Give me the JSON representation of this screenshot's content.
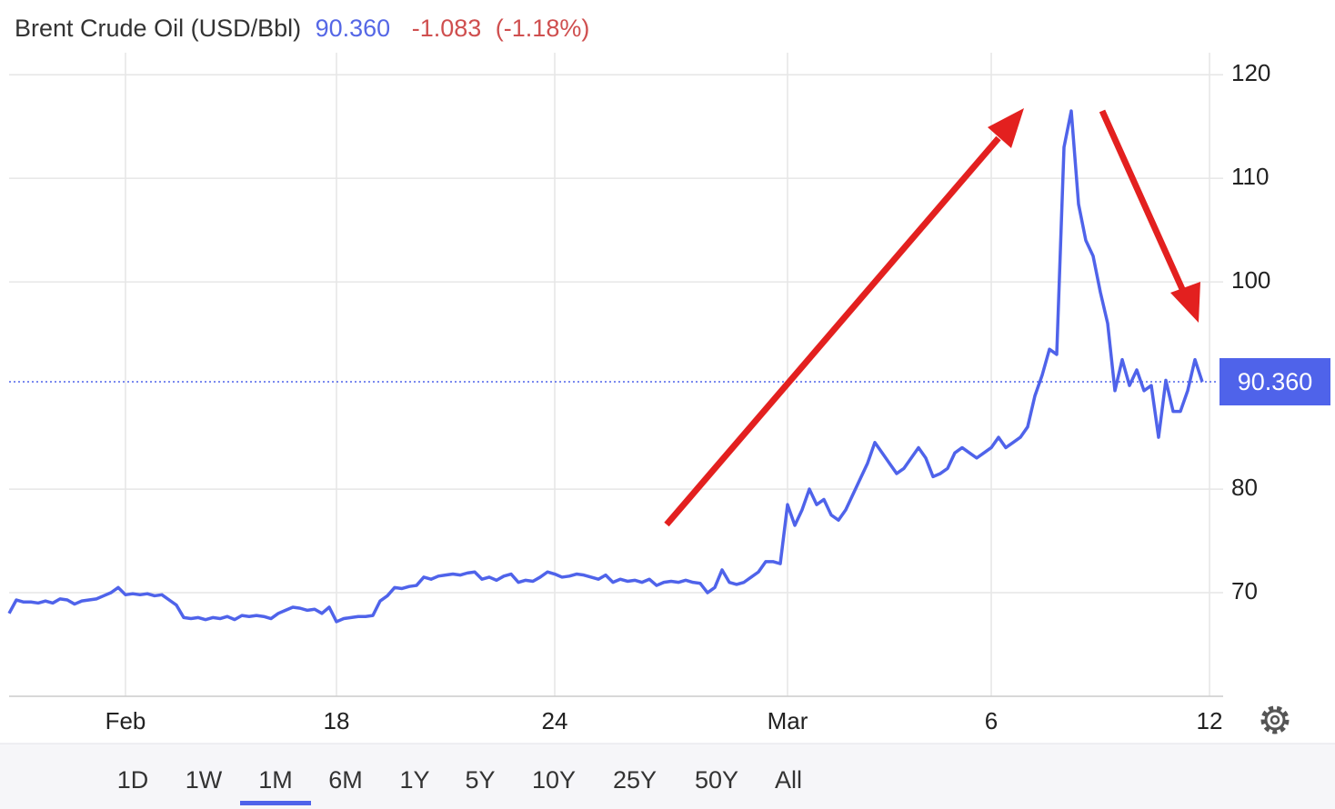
{
  "header": {
    "title": "Brent Crude Oil (USD/Bbl)",
    "price": "90.360",
    "change": "-1.083",
    "change_pct": "(-1.18%)"
  },
  "chart_data": {
    "type": "line",
    "categories": [
      null,
      null,
      null,
      null,
      null,
      null,
      null,
      null,
      null,
      null,
      null,
      null,
      null,
      null,
      null,
      null,
      "Feb",
      null,
      null,
      null,
      null,
      null,
      null,
      null,
      null,
      null,
      null,
      null,
      null,
      null,
      null,
      null,
      null,
      null,
      null,
      null,
      null,
      null,
      null,
      null,
      null,
      null,
      null,
      null,
      null,
      "18",
      null,
      null,
      null,
      null,
      null,
      null,
      null,
      null,
      null,
      null,
      null,
      null,
      null,
      null,
      null,
      null,
      null,
      null,
      null,
      null,
      null,
      null,
      null,
      null,
      null,
      null,
      null,
      null,
      null,
      "24",
      null,
      null,
      null,
      null,
      null,
      null,
      null,
      null,
      null,
      null,
      null,
      null,
      null,
      null,
      null,
      null,
      null,
      null,
      null,
      null,
      null,
      null,
      null,
      null,
      null,
      null,
      null,
      null,
      null,
      null,
      null,
      "Mar",
      null,
      null,
      null,
      null,
      null,
      null,
      null,
      null,
      null,
      null,
      null,
      null,
      null,
      null,
      null,
      null,
      null,
      null,
      null,
      null,
      null,
      null,
      null,
      null,
      null,
      null,
      null,
      "6",
      null,
      null,
      null,
      null,
      null,
      null,
      null,
      null,
      null,
      null,
      null,
      null,
      null,
      null,
      null,
      null,
      null,
      null,
      null,
      null,
      null,
      null,
      null,
      null,
      null,
      null,
      null,
      null,
      null,
      "12"
    ],
    "series": [
      {
        "name": "Brent Crude Oil",
        "color": "#4f63ea",
        "values": [
          68.0,
          69.3,
          69.1,
          69.1,
          69.0,
          69.2,
          69.0,
          69.4,
          69.3,
          68.9,
          69.2,
          69.3,
          69.4,
          69.7,
          70.0,
          70.5,
          69.8,
          69.9,
          69.8,
          69.9,
          69.7,
          69.8,
          69.3,
          68.8,
          67.6,
          67.5,
          67.6,
          67.4,
          67.6,
          67.5,
          67.7,
          67.4,
          67.8,
          67.7,
          67.8,
          67.7,
          67.5,
          68.0,
          68.3,
          68.6,
          68.5,
          68.3,
          68.4,
          68.0,
          68.6,
          67.2,
          67.5,
          67.6,
          67.7,
          67.7,
          67.8,
          69.2,
          69.7,
          70.5,
          70.4,
          70.6,
          70.7,
          71.5,
          71.3,
          71.6,
          71.7,
          71.8,
          71.7,
          71.9,
          72.0,
          71.3,
          71.5,
          71.2,
          71.6,
          71.8,
          71.0,
          71.2,
          71.1,
          71.5,
          72.0,
          71.8,
          71.5,
          71.6,
          71.8,
          71.7,
          71.5,
          71.3,
          71.7,
          71.0,
          71.3,
          71.1,
          71.2,
          71.0,
          71.3,
          70.7,
          71.0,
          71.1,
          71.0,
          71.2,
          71.0,
          70.9,
          70.0,
          70.5,
          72.2,
          71.0,
          70.8,
          71.0,
          71.5,
          72.0,
          73.0,
          73.0,
          72.8,
          78.5,
          76.5,
          78.0,
          80.0,
          78.5,
          79.0,
          77.5,
          77.0,
          78.0,
          79.5,
          81.0,
          82.5,
          84.5,
          83.5,
          82.5,
          81.5,
          82.0,
          83.0,
          84.0,
          83.0,
          81.2,
          81.5,
          82.0,
          83.5,
          84.0,
          83.5,
          83.0,
          83.5,
          84.0,
          85.0,
          84.0,
          84.5,
          85.0,
          86.0,
          89.0,
          91.0,
          93.5,
          93.0,
          113.0,
          116.5,
          107.5,
          104.0,
          102.5,
          99.0,
          96.0,
          89.5,
          92.5,
          90.0,
          91.5,
          89.5,
          90.0,
          85.0,
          90.5,
          87.5,
          87.5,
          89.5,
          92.5,
          90.36,
          null
        ]
      }
    ],
    "ylim": [
      60,
      123
    ],
    "yticks": [
      70,
      80,
      100,
      110,
      120
    ],
    "grid": true
  },
  "ranges": [
    "1D",
    "1W",
    "1M",
    "6M",
    "1Y",
    "5Y",
    "10Y",
    "25Y",
    "50Y",
    "All"
  ],
  "selected_range": "1M"
}
